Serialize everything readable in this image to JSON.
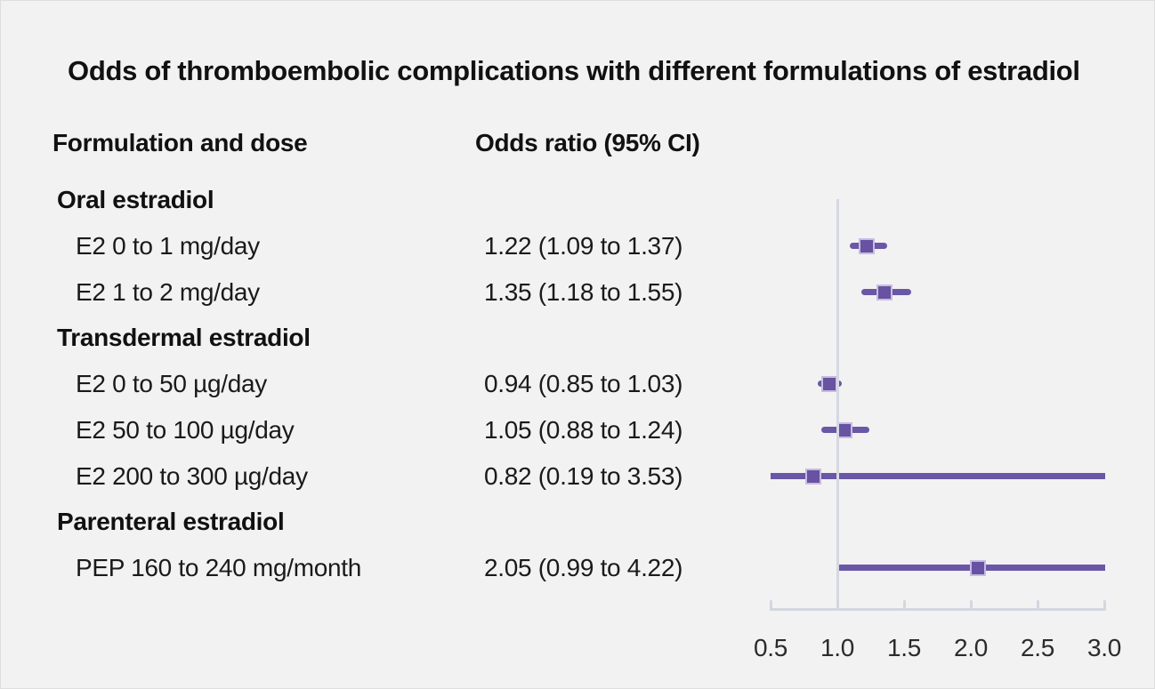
{
  "chart_data": {
    "type": "forest",
    "title": "Odds of thromboembolic complications with different formulations of estradiol",
    "columns": {
      "formulation": "Formulation and dose",
      "odds_ratio": "Odds ratio (95% CI)"
    },
    "rows": [
      {
        "type": "group",
        "label": "Oral estradiol"
      },
      {
        "type": "item",
        "label": "E2 0 to 1 mg/day",
        "value_label": "1.22 (1.09 to 1.37)",
        "or": 1.22,
        "ci_low": 1.09,
        "ci_high": 1.37
      },
      {
        "type": "item",
        "label": "E2 1 to 2 mg/day",
        "value_label": "1.35 (1.18 to 1.55)",
        "or": 1.35,
        "ci_low": 1.18,
        "ci_high": 1.55
      },
      {
        "type": "group",
        "label": "Transdermal estradiol"
      },
      {
        "type": "item",
        "label": "E2 0 to 50 µg/day",
        "value_label": "0.94 (0.85 to 1.03)",
        "or": 0.94,
        "ci_low": 0.85,
        "ci_high": 1.03
      },
      {
        "type": "item",
        "label": "E2 50 to 100 µg/day",
        "value_label": "1.05 (0.88 to 1.24)",
        "or": 1.05,
        "ci_low": 0.88,
        "ci_high": 1.24
      },
      {
        "type": "item",
        "label": "E2 200 to 300 µg/day",
        "value_label": "0.82 (0.19 to 3.53)",
        "or": 0.82,
        "ci_low": 0.19,
        "ci_high": 3.53
      },
      {
        "type": "group",
        "label": "Parenteral estradiol"
      },
      {
        "type": "item",
        "label": "PEP 160 to 240 mg/month",
        "value_label": "2.05 (0.99 to 4.22)",
        "or": 2.05,
        "ci_low": 0.99,
        "ci_high": 4.22
      }
    ],
    "x_axis": {
      "min": 0.5,
      "max": 3.0,
      "reference": 1.0,
      "ticks": [
        {
          "label": "0.5",
          "value": 0.5
        },
        {
          "label": "1.0",
          "value": 1.0
        },
        {
          "label": "1.5",
          "value": 1.5
        },
        {
          "label": "2.0",
          "value": 2.0
        },
        {
          "label": "2.5",
          "value": 2.5
        },
        {
          "label": "3.0",
          "value": 3.0
        }
      ]
    },
    "colors": {
      "background": "#f2f2f3",
      "marker_line": "#6a57a6",
      "marker_fill": "#6852a2",
      "marker_border": "#c7bce1",
      "reference_line": "#d5d8e2",
      "axis": "#d3d7df",
      "text": "#1a1a1a",
      "tick_text": "#2b2b2b"
    }
  }
}
